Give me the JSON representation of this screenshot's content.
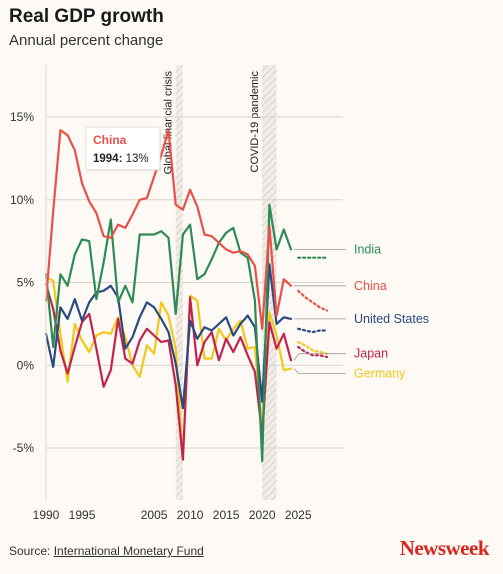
{
  "header": {
    "title": "Real GDP growth",
    "subtitle": "Annual percent change"
  },
  "footer": {
    "source_prefix": "Source: ",
    "source_link": "International Monetary Fund",
    "brand": "Newsweek"
  },
  "chart_data": {
    "type": "line",
    "x_range": [
      1990,
      2029
    ],
    "ylim": [
      -8,
      18
    ],
    "y_ticks": [
      {
        "value": 15,
        "label": "15%"
      },
      {
        "value": 10,
        "label": "10%"
      },
      {
        "value": 5,
        "label": "5%"
      },
      {
        "value": 0,
        "label": "0%"
      },
      {
        "value": -5,
        "label": "-5%"
      }
    ],
    "x_ticks": [
      {
        "value": 1990,
        "label": "1990"
      },
      {
        "value": 1995,
        "label": "1995"
      },
      {
        "value": 2005,
        "label": "2005"
      },
      {
        "value": 2010,
        "label": "2010"
      },
      {
        "value": 2015,
        "label": "2015"
      },
      {
        "value": 2020,
        "label": "2020"
      },
      {
        "value": 2025,
        "label": "2025"
      }
    ],
    "grid": true,
    "annotations": [
      {
        "label": "Global financial crisis",
        "x_start": 2008,
        "x_end": 2009
      },
      {
        "label": "COVID-19 pandemic",
        "x_start": 2020,
        "x_end": 2022
      }
    ],
    "tooltip": {
      "series": "China",
      "year": "1994:",
      "value": "13%"
    },
    "series": [
      {
        "name": "India",
        "color": "#2e8b57",
        "x": [
          1990,
          1991,
          1992,
          1993,
          1994,
          1995,
          1996,
          1997,
          1998,
          1999,
          2000,
          2001,
          2002,
          2003,
          2004,
          2005,
          2006,
          2007,
          2008,
          2009,
          2010,
          2011,
          2012,
          2013,
          2014,
          2015,
          2016,
          2017,
          2018,
          2019,
          2020,
          2021,
          2022,
          2023,
          2024
        ],
        "values": [
          5.5,
          1.1,
          5.5,
          4.8,
          6.7,
          7.6,
          7.5,
          4.0,
          6.2,
          8.8,
          3.8,
          4.8,
          3.8,
          7.9,
          7.9,
          7.9,
          8.1,
          7.7,
          3.1,
          7.9,
          8.5,
          5.2,
          5.5,
          6.4,
          7.4,
          8.0,
          8.3,
          6.8,
          6.5,
          3.9,
          -5.8,
          9.7,
          7.0,
          8.2,
          7.0
        ],
        "projection_x": [
          2025,
          2026,
          2027,
          2028,
          2029
        ],
        "projection": [
          6.5,
          6.5,
          6.5,
          6.5,
          6.5
        ]
      },
      {
        "name": "China",
        "color": "#e8504a",
        "x": [
          1990,
          1991,
          1992,
          1993,
          1994,
          1995,
          1996,
          1997,
          1998,
          1999,
          2000,
          2001,
          2002,
          2003,
          2004,
          2005,
          2006,
          2007,
          2008,
          2009,
          2010,
          2011,
          2012,
          2013,
          2014,
          2015,
          2016,
          2017,
          2018,
          2019,
          2020,
          2021,
          2022,
          2023,
          2024
        ],
        "values": [
          3.9,
          9.3,
          14.2,
          13.9,
          13.0,
          11.0,
          9.9,
          9.2,
          7.8,
          7.7,
          8.5,
          8.3,
          9.1,
          10.0,
          10.1,
          11.4,
          12.7,
          14.2,
          9.7,
          9.4,
          10.6,
          9.6,
          7.9,
          7.8,
          7.4,
          7.0,
          6.8,
          6.9,
          6.7,
          6.0,
          2.2,
          8.4,
          3.0,
          5.2,
          4.8
        ],
        "projection_x": [
          2025,
          2026,
          2027,
          2028,
          2029
        ],
        "projection": [
          4.5,
          4.1,
          3.8,
          3.5,
          3.3
        ]
      },
      {
        "name": "United States",
        "color": "#2b4a7e",
        "x": [
          1990,
          1991,
          1992,
          1993,
          1994,
          1995,
          1996,
          1997,
          1998,
          1999,
          2000,
          2001,
          2002,
          2003,
          2004,
          2005,
          2006,
          2007,
          2008,
          2009,
          2010,
          2011,
          2012,
          2013,
          2014,
          2015,
          2016,
          2017,
          2018,
          2019,
          2020,
          2021,
          2022,
          2023,
          2024
        ],
        "values": [
          1.9,
          -0.1,
          3.5,
          2.8,
          4.0,
          2.7,
          3.8,
          4.4,
          4.5,
          4.8,
          4.1,
          1.0,
          1.7,
          2.9,
          3.8,
          3.5,
          2.8,
          2.0,
          0.1,
          -2.6,
          2.7,
          1.6,
          2.3,
          2.1,
          2.5,
          2.9,
          1.8,
          2.5,
          3.0,
          2.3,
          -2.2,
          6.1,
          2.5,
          2.9,
          2.8
        ],
        "projection_x": [
          2025,
          2026,
          2027,
          2028,
          2029
        ],
        "projection": [
          2.2,
          2.1,
          2.0,
          2.1,
          2.1
        ]
      },
      {
        "name": "Japan",
        "color": "#c2234e",
        "x": [
          1990,
          1991,
          1992,
          1993,
          1994,
          1995,
          1996,
          1997,
          1998,
          1999,
          2000,
          2001,
          2002,
          2003,
          2004,
          2005,
          2006,
          2007,
          2008,
          2009,
          2010,
          2011,
          2012,
          2013,
          2014,
          2015,
          2016,
          2017,
          2018,
          2019,
          2020,
          2021,
          2022,
          2023,
          2024
        ],
        "values": [
          4.9,
          3.4,
          0.9,
          -0.5,
          1.1,
          2.6,
          3.1,
          1.0,
          -1.3,
          -0.3,
          2.8,
          0.4,
          0.1,
          1.5,
          2.2,
          1.8,
          1.4,
          1.5,
          -1.2,
          -5.7,
          4.1,
          0.0,
          1.4,
          2.0,
          0.3,
          1.6,
          0.8,
          1.7,
          0.6,
          -0.4,
          -4.2,
          2.6,
          1.0,
          1.9,
          0.3
        ],
        "projection_x": [
          2025,
          2026,
          2027,
          2028,
          2029
        ],
        "projection": [
          1.1,
          0.8,
          0.6,
          0.6,
          0.5
        ]
      },
      {
        "name": "Germany",
        "color": "#f2c81b",
        "x": [
          1990,
          1991,
          1992,
          1993,
          1994,
          1995,
          1996,
          1997,
          1998,
          1999,
          2000,
          2001,
          2002,
          2003,
          2004,
          2005,
          2006,
          2007,
          2008,
          2009,
          2010,
          2011,
          2012,
          2013,
          2014,
          2015,
          2016,
          2017,
          2018,
          2019,
          2020,
          2021,
          2022,
          2023,
          2024
        ],
        "values": [
          5.3,
          5.1,
          1.9,
          -1.0,
          2.5,
          1.5,
          0.8,
          1.8,
          2.0,
          1.9,
          2.9,
          1.7,
          0.0,
          -0.7,
          1.2,
          0.7,
          3.8,
          3.0,
          1.0,
          -5.7,
          4.2,
          3.9,
          0.4,
          0.4,
          2.2,
          1.5,
          2.2,
          2.7,
          1.0,
          1.1,
          -3.8,
          3.2,
          1.8,
          -0.3,
          -0.2
        ],
        "projection_x": [
          2025,
          2026,
          2027,
          2028,
          2029
        ],
        "projection": [
          1.4,
          1.2,
          0.9,
          0.8,
          0.7
        ]
      }
    ],
    "legend": [
      {
        "series": "India",
        "label": "India",
        "anchor_value": 7.0,
        "label_value": 7.0
      },
      {
        "series": "China",
        "label": "China",
        "anchor_value": 4.8,
        "label_value": 4.8
      },
      {
        "series": "United States",
        "label": "United States",
        "anchor_value": 2.8,
        "label_value": 2.8
      },
      {
        "series": "Japan",
        "label": "Japan",
        "anchor_value": 0.3,
        "label_value": 0.7
      },
      {
        "series": "Germany",
        "label": "Germany",
        "anchor_value": -0.2,
        "label_value": -0.5
      }
    ]
  }
}
